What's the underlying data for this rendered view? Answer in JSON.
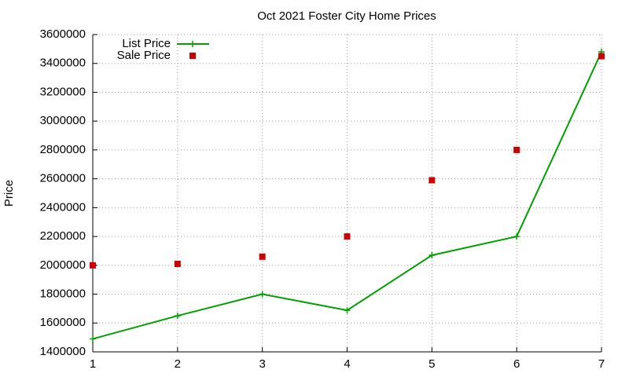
{
  "chart_data": {
    "type": "line",
    "title": "Oct 2021 Foster City Home Prices",
    "y_label": "Price",
    "x": [
      1,
      2,
      3,
      4,
      5,
      6,
      7
    ],
    "series": [
      {
        "name": "List Price",
        "color": "#00a000",
        "mode": "lines+points",
        "values": [
          1490000,
          1650000,
          1800000,
          1688000,
          2070000,
          2200000,
          3480000
        ]
      },
      {
        "name": "Sale Price",
        "color": "#cc0000",
        "mode": "points",
        "values": [
          2000000,
          2010000,
          2060000,
          2200000,
          2590000,
          2800000,
          3450000
        ]
      }
    ],
    "xlim": [
      1,
      7
    ],
    "xticks": [
      1,
      2,
      3,
      4,
      5,
      6,
      7
    ],
    "ylim": [
      1400000,
      3600000
    ],
    "yticks": [
      1400000,
      1600000,
      1800000,
      2000000,
      2200000,
      2400000,
      2600000,
      2800000,
      3000000,
      3200000,
      3400000,
      3600000
    ],
    "grid": true,
    "legend": "top-left"
  }
}
